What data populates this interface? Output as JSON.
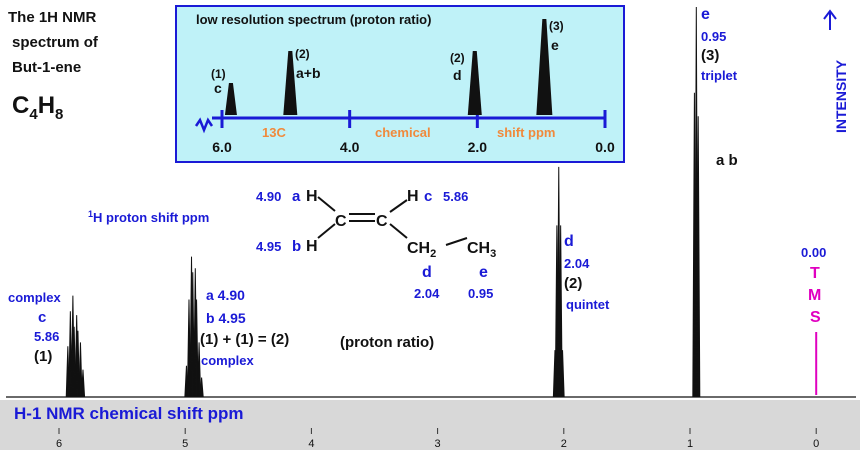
{
  "title_lines": [
    "The 1H NMR",
    "spectrum of",
    "But-1-ene"
  ],
  "formula": {
    "c": "C",
    "c_sub": "4",
    "h": "H",
    "h_sub": "8"
  },
  "proton_shift_label": {
    "sup": "1",
    "main": "H  proton shift  ppm"
  },
  "intensity_label": "INTENSITY",
  "xaxis_label": "H-1 NMR chemical shift  ppm",
  "ratio_text": "(proton ratio)",
  "inset": {
    "title": "low resolution spectrum  (proton ratio)",
    "peaks": [
      {
        "ratio": "(1)",
        "letter": "c",
        "ppm": 5.86,
        "height": 1
      },
      {
        "ratio": "(2)",
        "letter": "a+b",
        "ppm": 4.93,
        "height": 2
      },
      {
        "ratio": "(2)",
        "letter": "d",
        "ppm": 2.04,
        "height": 2
      },
      {
        "ratio": "(3)",
        "letter": "e",
        "ppm": 0.95,
        "height": 3
      }
    ],
    "ticks": [
      "6.0",
      "4.0",
      "2.0",
      "0.0"
    ],
    "axis_words": {
      "c13": "13C",
      "chemical": "chemical",
      "shift": "shift  ppm"
    }
  },
  "molecule": {
    "h_a": "H",
    "label_a_shift": "4.90",
    "label_a_letter": "a",
    "h_b": "H",
    "label_b_shift": "4.95",
    "label_b_letter": "b",
    "h_c": "H",
    "label_c_letter": "c",
    "label_c_shift": "5.86",
    "c1": "C",
    "c2": "C",
    "ch2": "CH",
    "ch2_sub": "2",
    "ch3": "CH",
    "ch3_sub": "3",
    "d_letter": "d",
    "d_shift": "2.04",
    "e_letter": "e",
    "e_shift": "0.95"
  },
  "annotations": {
    "c": {
      "line1": "complex",
      "letter": "c",
      "shift": "5.86",
      "ratio": "(1)"
    },
    "ab": {
      "a": "a 4.90",
      "b": "b 4.95",
      "sum": "(1) + (1) = (2)",
      "kind": "complex"
    },
    "d": {
      "letter": "d",
      "shift": "2.04",
      "ratio": "(2)",
      "kind": "quintet"
    },
    "e": {
      "letter": "e",
      "shift": "0.95",
      "ratio": "(3)",
      "kind": "triplet"
    },
    "ab_top": "a  b",
    "tms": {
      "shift": "0.00",
      "letters": [
        "T",
        "M",
        "S"
      ]
    }
  },
  "chart_data": {
    "type": "line",
    "title": "",
    "xlabel": "H-1 NMR chemical shift  ppm",
    "ylabel": "INTENSITY",
    "xlim": [
      6.3,
      -0.3
    ],
    "xticks": [
      6,
      5,
      4,
      3,
      2,
      1,
      0
    ],
    "tick_labels": [
      "6",
      "5",
      "4",
      "3",
      "2",
      "1",
      "0"
    ],
    "series": [
      {
        "group": "c",
        "multiplet": "complex",
        "proton_ratio": 1,
        "peaks": [
          {
            "ppm": 5.93,
            "rel": 0.13
          },
          {
            "ppm": 5.91,
            "rel": 0.22
          },
          {
            "ppm": 5.89,
            "rel": 0.26
          },
          {
            "ppm": 5.88,
            "rel": 0.18
          },
          {
            "ppm": 5.86,
            "rel": 0.21
          },
          {
            "ppm": 5.85,
            "rel": 0.17
          },
          {
            "ppm": 5.83,
            "rel": 0.14
          },
          {
            "ppm": 5.81,
            "rel": 0.07
          }
        ]
      },
      {
        "group": "a,b",
        "multiplet": "complex",
        "proton_ratio": 2,
        "peaks": [
          {
            "ppm": 4.99,
            "rel": 0.08
          },
          {
            "ppm": 4.97,
            "rel": 0.25
          },
          {
            "ppm": 4.95,
            "rel": 0.36
          },
          {
            "ppm": 4.94,
            "rel": 0.32
          },
          {
            "ppm": 4.92,
            "rel": 0.33
          },
          {
            "ppm": 4.91,
            "rel": 0.25
          },
          {
            "ppm": 4.89,
            "rel": 0.14
          },
          {
            "ppm": 4.87,
            "rel": 0.05
          }
        ]
      },
      {
        "group": "d",
        "multiplet": "quintet",
        "proton_ratio": 2,
        "peaks": [
          {
            "ppm": 2.07,
            "rel": 0.12
          },
          {
            "ppm": 2.055,
            "rel": 0.44
          },
          {
            "ppm": 2.04,
            "rel": 0.59
          },
          {
            "ppm": 2.025,
            "rel": 0.44
          },
          {
            "ppm": 2.01,
            "rel": 0.12
          }
        ]
      },
      {
        "group": "e",
        "multiplet": "triplet",
        "proton_ratio": 3,
        "peaks": [
          {
            "ppm": 0.965,
            "rel": 0.78
          },
          {
            "ppm": 0.95,
            "rel": 1.0
          },
          {
            "ppm": 0.935,
            "rel": 0.72
          }
        ]
      },
      {
        "group": "TMS",
        "multiplet": "singlet",
        "peaks": [
          {
            "ppm": 0.0,
            "rel": 0.2
          }
        ]
      }
    ]
  }
}
